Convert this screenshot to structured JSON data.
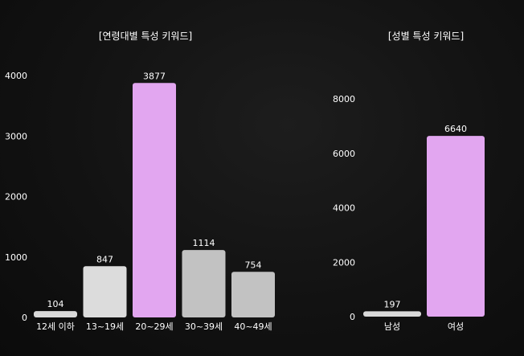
{
  "chart_data": [
    {
      "type": "bar",
      "title": "[연령대별 특성 키워드]",
      "xlabel": "",
      "ylabel": "",
      "categories": [
        "12세 이하",
        "13~19세",
        "20~29세",
        "30~39세",
        "40~49세"
      ],
      "values": [
        104,
        847,
        3877,
        1114,
        754
      ],
      "colors": [
        "#d9d9d9",
        "#dcdcdc",
        "#e2a6f0",
        "#c2c2c2",
        "#c2c2c2"
      ],
      "yticks": [
        0,
        1000,
        2000,
        3000,
        4000
      ],
      "ylim": [
        0,
        4000
      ],
      "grid": false,
      "legend": "none"
    },
    {
      "type": "bar",
      "title": "[성별 특성 키워드]",
      "xlabel": "",
      "ylabel": "",
      "categories": [
        "남성",
        "여성"
      ],
      "values": [
        197,
        6640
      ],
      "colors": [
        "#d9d9d9",
        "#e2a6f0"
      ],
      "yticks": [
        0,
        2000,
        4000,
        6000,
        8000
      ],
      "ylim": [
        0,
        8000
      ],
      "grid": false,
      "legend": "none"
    }
  ]
}
